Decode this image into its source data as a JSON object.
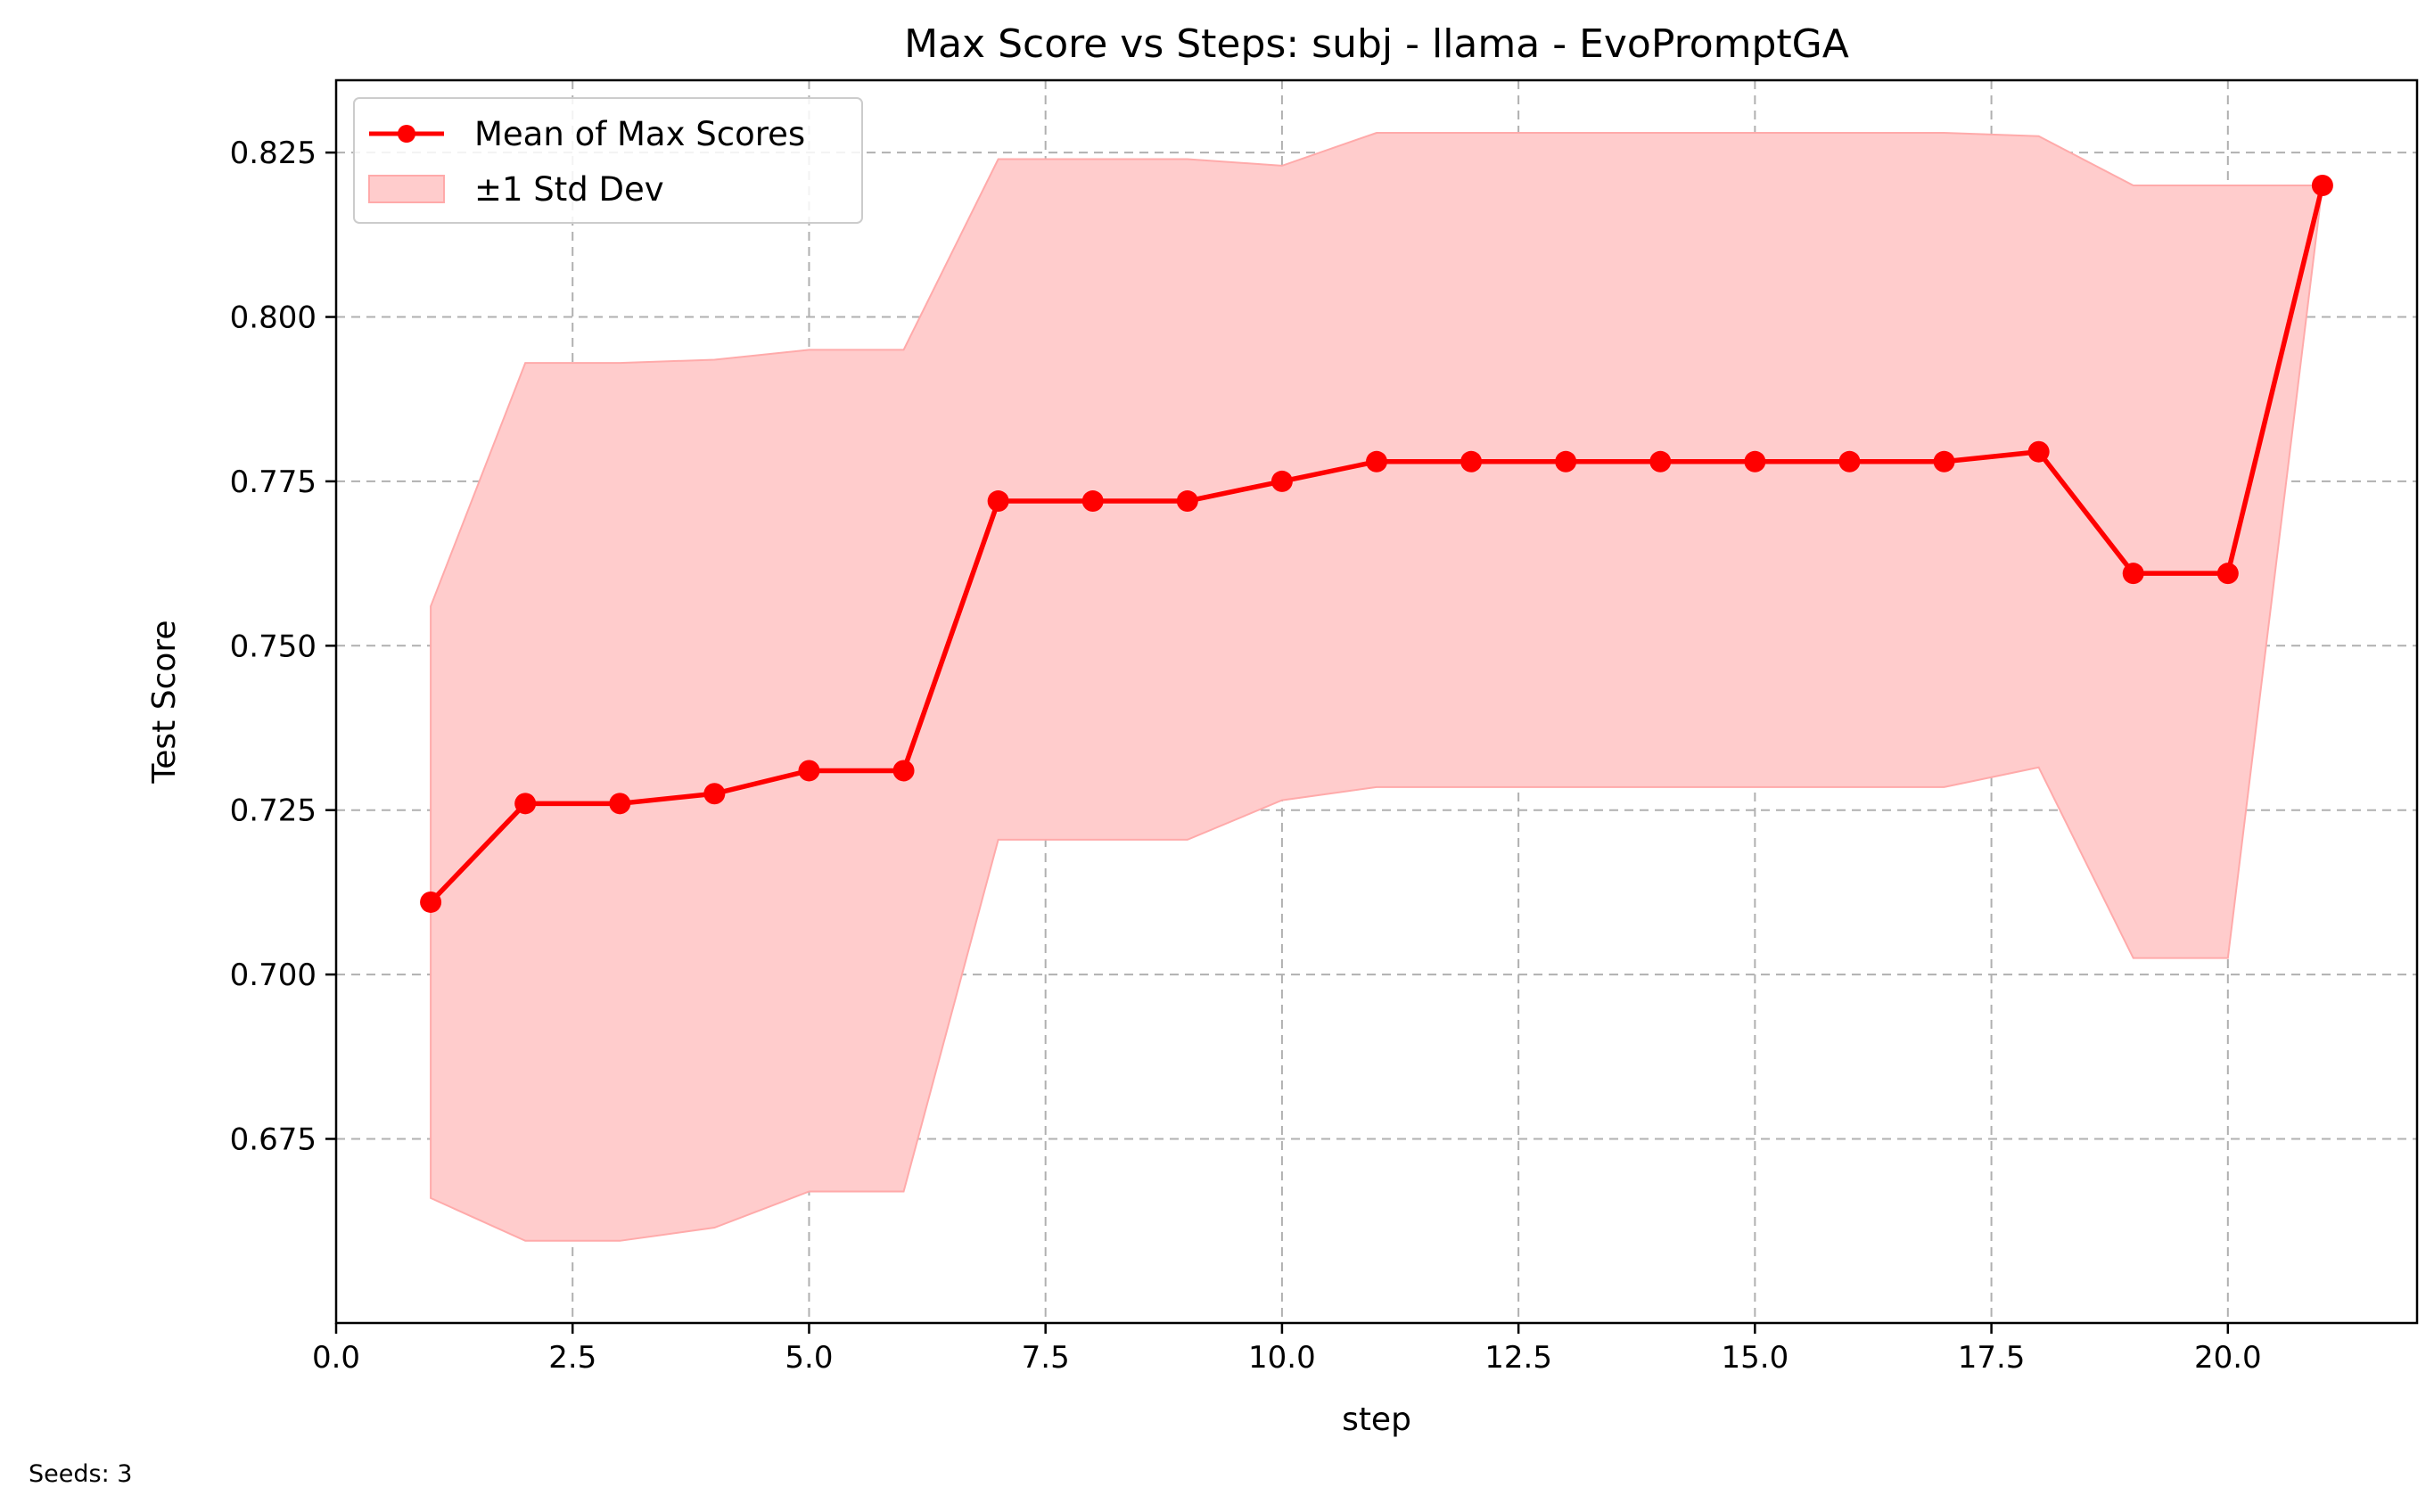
{
  "chart_data": {
    "type": "line",
    "title": "Max Score vs Steps: subj - llama - EvoPromptGA",
    "xlabel": "step",
    "ylabel": "Test Score",
    "xlim": [
      0,
      22
    ],
    "ylim": [
      0.647,
      0.836
    ],
    "x_ticks": [
      0,
      2.5,
      5,
      7.5,
      10,
      12.5,
      15,
      17.5,
      20
    ],
    "x_tick_labels": [
      "0.0",
      "2.5",
      "5.0",
      "7.5",
      "10.0",
      "12.5",
      "15.0",
      "17.5",
      "20.0"
    ],
    "y_ticks": [
      0.675,
      0.7,
      0.725,
      0.75,
      0.775,
      0.8,
      0.825
    ],
    "y_tick_labels": [
      "0.675",
      "0.700",
      "0.725",
      "0.750",
      "0.775",
      "0.800",
      "0.825"
    ],
    "grid": true,
    "legend_position": "top-left",
    "series": [
      {
        "name": "Mean of Max Scores",
        "color": "#ff0000",
        "x": [
          1,
          2,
          3,
          4,
          5,
          6,
          7,
          8,
          9,
          10,
          11,
          12,
          13,
          14,
          15,
          16,
          17,
          18,
          19,
          20,
          21
        ],
        "values": [
          0.711,
          0.726,
          0.726,
          0.7275,
          0.731,
          0.731,
          0.772,
          0.772,
          0.772,
          0.775,
          0.778,
          0.778,
          0.778,
          0.778,
          0.778,
          0.778,
          0.778,
          0.7795,
          0.761,
          0.761,
          0.82
        ]
      }
    ],
    "band": {
      "name": "±1 Std Dev",
      "color": "#ffcccc",
      "edge_color": "#ffaaaa",
      "x": [
        1,
        2,
        3,
        4,
        5,
        6,
        7,
        8,
        9,
        10,
        11,
        12,
        13,
        14,
        15,
        16,
        17,
        18,
        19,
        20,
        21
      ],
      "upper": [
        0.756,
        0.793,
        0.793,
        0.7935,
        0.795,
        0.795,
        0.824,
        0.824,
        0.824,
        0.823,
        0.828,
        0.828,
        0.828,
        0.828,
        0.828,
        0.828,
        0.828,
        0.8275,
        0.82,
        0.82,
        0.82
      ],
      "lower": [
        0.666,
        0.6595,
        0.6595,
        0.6615,
        0.667,
        0.667,
        0.7205,
        0.7205,
        0.7205,
        0.7265,
        0.7285,
        0.7285,
        0.7285,
        0.7285,
        0.7285,
        0.7285,
        0.7285,
        0.7315,
        0.7025,
        0.7025,
        0.82
      ]
    }
  },
  "footnote": "Seeds: 3"
}
